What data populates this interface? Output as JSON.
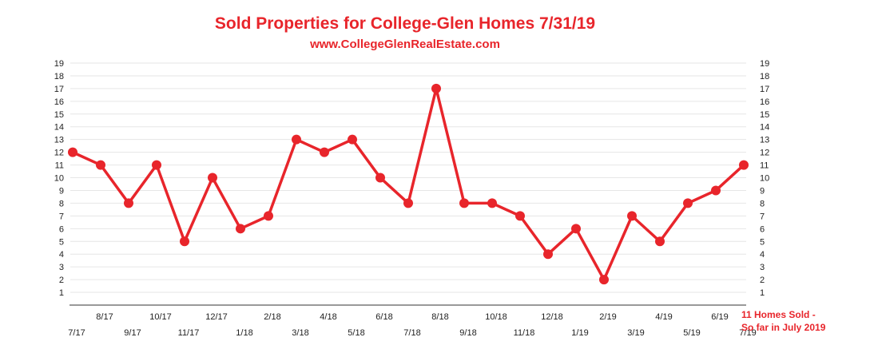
{
  "chart_data": {
    "type": "line",
    "title": "Sold Properties for College-Glen Homes 7/31/19",
    "subtitle": "www.CollegeGlenRealEstate.com",
    "categories": [
      "7/17",
      "8/17",
      "9/17",
      "10/17",
      "11/17",
      "12/17",
      "1/18",
      "2/18",
      "3/18",
      "4/18",
      "5/18",
      "6/18",
      "7/18",
      "8/18",
      "9/18",
      "10/18",
      "11/18",
      "12/18",
      "1/19",
      "2/19",
      "3/19",
      "4/19",
      "5/19",
      "6/19",
      "7/19"
    ],
    "series": [
      {
        "values": [
          12,
          11,
          8,
          11,
          5,
          10,
          6,
          7,
          13,
          12,
          13,
          10,
          8,
          17,
          8,
          8,
          7,
          4,
          6,
          2,
          7,
          5,
          8,
          9,
          11
        ]
      }
    ],
    "yticks": [
      1,
      2,
      3,
      4,
      5,
      6,
      7,
      8,
      9,
      10,
      11,
      12,
      13,
      14,
      15,
      16,
      17,
      18,
      19
    ],
    "ylim": [
      0,
      19
    ],
    "grid": true,
    "line_color": "#e8252b",
    "annotation": [
      "11 Homes Sold -",
      "So far in July 2019"
    ]
  }
}
